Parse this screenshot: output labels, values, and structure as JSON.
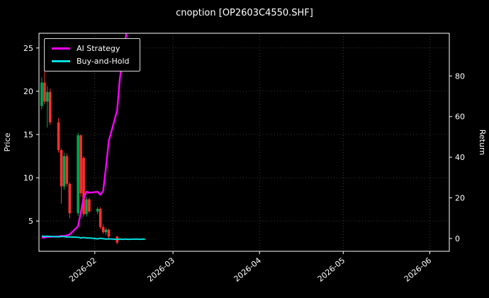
{
  "chart_data": {
    "type": "candlestick+line",
    "title": "cnoption [OP2603C4550.SHF]",
    "ylabel_left": "Price",
    "ylabel_right": "Return",
    "grid": "dotted",
    "legend_position": "upper-left",
    "x_domain": [
      "2026-01-12",
      "2026-06-08"
    ],
    "x_ticks": [
      {
        "label": "2026-02",
        "date": "2026-02-01"
      },
      {
        "label": "2026-03",
        "date": "2026-03-01"
      },
      {
        "label": "2026-04",
        "date": "2026-04-01"
      },
      {
        "label": "2026-05",
        "date": "2026-05-01"
      },
      {
        "label": "2026-06",
        "date": "2026-06-01"
      }
    ],
    "price_ylim": [
      1.5,
      26.7
    ],
    "price_ticks": [
      5,
      10,
      15,
      20,
      25
    ],
    "return_ylim": [
      -6.3,
      101
    ],
    "return_ticks": [
      0,
      20,
      40,
      60,
      80
    ],
    "colors": {
      "background": "#000000",
      "foreground": "#ffffff",
      "grid": "#4a4a4a",
      "candle_up": "#00a650",
      "candle_down": "#ff2e2e",
      "ai_strategy": "#ff00ff",
      "buy_and_hold": "#00dede"
    },
    "candles": [
      {
        "d": "2026-01-13",
        "o": 18.3,
        "h": 21.6,
        "l": 17.9,
        "c": 21.0
      },
      {
        "d": "2026-01-14",
        "o": 21.0,
        "h": 23.3,
        "l": 18.5,
        "c": 18.8
      },
      {
        "d": "2026-01-15",
        "o": 18.8,
        "h": 20.6,
        "l": 15.8,
        "c": 19.9
      },
      {
        "d": "2026-01-16",
        "o": 19.9,
        "h": 20.3,
        "l": 16.1,
        "c": 16.4
      },
      {
        "d": "2026-01-19",
        "o": 16.4,
        "h": 16.9,
        "l": 12.9,
        "c": 13.2
      },
      {
        "d": "2026-01-20",
        "o": 13.2,
        "h": 13.4,
        "l": 7.0,
        "c": 9.0
      },
      {
        "d": "2026-01-21",
        "o": 9.0,
        "h": 12.9,
        "l": 8.6,
        "c": 12.5
      },
      {
        "d": "2026-01-22",
        "o": 12.5,
        "h": 12.8,
        "l": 9.0,
        "c": 9.3
      },
      {
        "d": "2026-01-23",
        "o": 9.3,
        "h": 9.5,
        "l": 5.3,
        "c": 5.9
      },
      {
        "d": "2026-01-26",
        "o": 5.9,
        "h": 15.2,
        "l": 5.6,
        "c": 14.9
      },
      {
        "d": "2026-01-27",
        "o": 14.9,
        "h": 15.0,
        "l": 7.8,
        "c": 8.2
      },
      {
        "d": "2026-01-28",
        "o": 12.3,
        "h": 12.5,
        "l": 5.5,
        "c": 5.8
      },
      {
        "d": "2026-01-29",
        "o": 5.8,
        "h": 7.8,
        "l": 5.5,
        "c": 7.5
      },
      {
        "d": "2026-01-30",
        "o": 7.5,
        "h": 7.7,
        "l": 5.9,
        "c": 6.1
      },
      {
        "d": "2026-02-02",
        "o": 6.1,
        "h": 6.6,
        "l": 5.8,
        "c": 6.4
      },
      {
        "d": "2026-02-03",
        "o": 6.4,
        "h": 6.6,
        "l": 4.1,
        "c": 4.3
      },
      {
        "d": "2026-02-04",
        "o": 4.3,
        "h": 4.6,
        "l": 3.5,
        "c": 3.7
      },
      {
        "d": "2026-02-05",
        "o": 3.7,
        "h": 4.2,
        "l": 3.4,
        "c": 4.0
      },
      {
        "d": "2026-02-06",
        "o": 4.0,
        "h": 4.1,
        "l": 3.0,
        "c": 3.2
      },
      {
        "d": "2026-02-09",
        "o": 3.2,
        "h": 3.3,
        "l": 2.3,
        "c": 2.5
      }
    ],
    "series": [
      {
        "name": "AI Strategy",
        "color": "#ff00ff",
        "axis": "return",
        "points": [
          [
            "2026-01-13",
            0.5
          ],
          [
            "2026-01-14",
            0.5
          ],
          [
            "2026-01-15",
            0.8
          ],
          [
            "2026-01-16",
            0.8
          ],
          [
            "2026-01-19",
            1.0
          ],
          [
            "2026-01-20",
            1.2
          ],
          [
            "2026-01-21",
            1.2
          ],
          [
            "2026-01-22",
            1.5
          ],
          [
            "2026-01-23",
            2.0
          ],
          [
            "2026-01-26",
            6.0
          ],
          [
            "2026-01-27",
            13.0
          ],
          [
            "2026-01-28",
            20.0
          ],
          [
            "2026-01-29",
            23.0
          ],
          [
            "2026-01-30",
            22.5
          ],
          [
            "2026-02-02",
            23.0
          ],
          [
            "2026-02-03",
            21.5
          ],
          [
            "2026-02-04",
            23.5
          ],
          [
            "2026-02-05",
            35.0
          ],
          [
            "2026-02-06",
            48.0
          ],
          [
            "2026-02-09",
            63.0
          ],
          [
            "2026-02-10",
            79.0
          ],
          [
            "2026-02-11",
            88.0
          ],
          [
            "2026-02-12",
            98.0
          ],
          [
            "2026-02-13",
            108.0
          ]
        ]
      },
      {
        "name": "Buy-and-Hold",
        "color": "#00dede",
        "axis": "return",
        "points": [
          [
            "2026-01-13",
            1.2
          ],
          [
            "2026-01-14",
            1.0
          ],
          [
            "2026-01-15",
            1.1
          ],
          [
            "2026-01-16",
            1.0
          ],
          [
            "2026-01-19",
            0.8
          ],
          [
            "2026-01-20",
            1.0
          ],
          [
            "2026-01-21",
            0.9
          ],
          [
            "2026-01-22",
            0.7
          ],
          [
            "2026-01-23",
            0.8
          ],
          [
            "2026-01-26",
            0.6
          ],
          [
            "2026-01-27",
            0.3
          ],
          [
            "2026-01-28",
            0.5
          ],
          [
            "2026-01-29",
            0.2
          ],
          [
            "2026-01-30",
            0.3
          ],
          [
            "2026-02-02",
            -0.2
          ],
          [
            "2026-02-03",
            0.1
          ],
          [
            "2026-02-04",
            -0.1
          ],
          [
            "2026-02-05",
            -0.3
          ],
          [
            "2026-02-06",
            -0.2
          ],
          [
            "2026-02-09",
            -0.4
          ],
          [
            "2026-02-10",
            -0.3
          ],
          [
            "2026-02-11",
            -0.4
          ],
          [
            "2026-02-12",
            -0.3
          ],
          [
            "2026-02-13",
            -0.4
          ],
          [
            "2026-02-16",
            -0.3
          ],
          [
            "2026-02-17",
            -0.4
          ],
          [
            "2026-02-18",
            -0.3
          ],
          [
            "2026-02-19",
            -0.4
          ]
        ]
      }
    ]
  }
}
